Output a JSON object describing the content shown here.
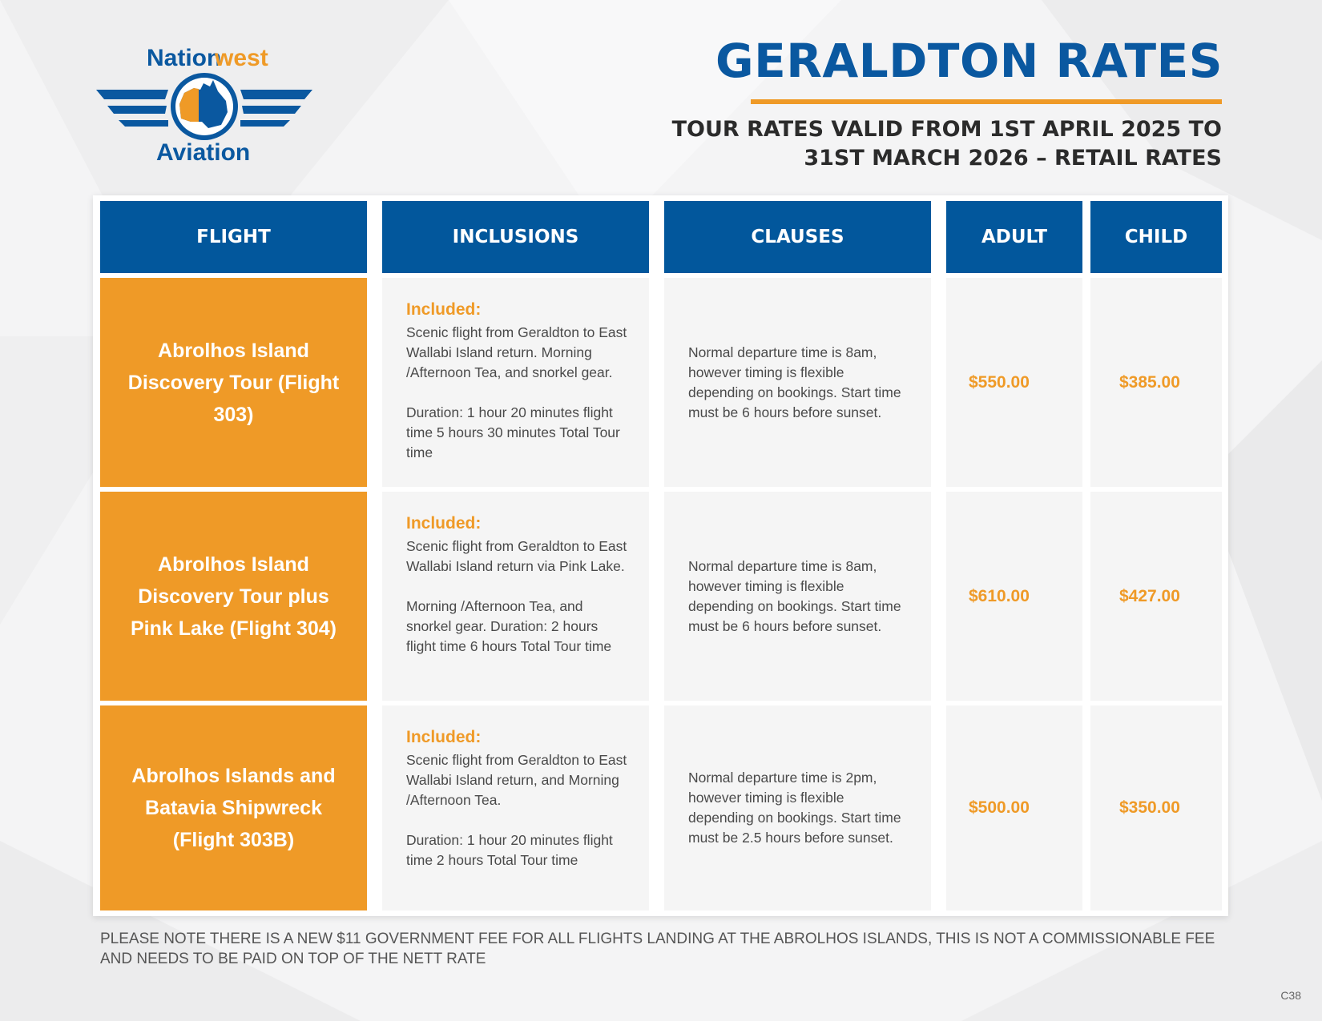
{
  "colors": {
    "brand_blue": "#02579c",
    "accent_orange": "#ef9a27",
    "title_blue": "#0a58a0"
  },
  "logo": {
    "brand_part1": "Nation",
    "brand_part2": "west",
    "brand_sub": "Aviation"
  },
  "header": {
    "title": "GERALDTON RATES",
    "subtitle_line1": "TOUR RATES VALID FROM 1ST APRIL 2025 TO",
    "subtitle_line2": "31ST MARCH 2026 – RETAIL RATES"
  },
  "table": {
    "columns": [
      "FLIGHT",
      "INCLUSIONS",
      "CLAUSES",
      "ADULT",
      "CHILD"
    ],
    "rows": [
      {
        "flight": "Abrolhos Island Discovery Tour (Flight 303)",
        "included_label": "Included:",
        "inclusions": [
          "Scenic flight from Geraldton to East Wallabi Island return. Morning /Afternoon Tea, and snorkel gear.",
          "Duration: 1 hour 20 minutes flight time 5 hours 30 minutes Total Tour time"
        ],
        "clauses": "Normal departure time is 8am, however timing is flexible depending on bookings. Start time must be 6 hours before sunset.",
        "adult": "$550.00",
        "child": "$385.00"
      },
      {
        "flight": "Abrolhos Island Discovery Tour plus Pink Lake (Flight 304)",
        "included_label": "Included:",
        "inclusions": [
          "Scenic flight from Geraldton to East Wallabi Island return via Pink Lake.",
          "Morning /Afternoon Tea, and snorkel gear. Duration: 2 hours flight time 6 hours Total Tour time"
        ],
        "clauses": "Normal departure time is 8am, however timing is flexible depending on bookings. Start time must be 6 hours before sunset.",
        "adult": "$610.00",
        "child": "$427.00"
      },
      {
        "flight": "Abrolhos Islands and Batavia Shipwreck (Flight 303B)",
        "included_label": "Included:",
        "inclusions": [
          "Scenic flight from Geraldton to East Wallabi Island return, and Morning /Afternoon Tea.",
          "Duration: 1 hour 20 minutes flight time 2 hours Total Tour time"
        ],
        "clauses": "Normal departure time is 2pm, however timing is flexible depending on bookings. Start time must be 2.5 hours before sunset.",
        "adult": "$500.00",
        "child": "$350.00"
      }
    ]
  },
  "footer": {
    "note": "PLEASE NOTE THERE IS A NEW $11 GOVERNMENT FEE FOR ALL FLIGHTS LANDING AT THE ABROLHOS ISLANDS, THIS IS NOT A COMMISSIONABLE FEE AND NEEDS TO BE PAID ON TOP OF THE NETT RATE",
    "page_code": "C38"
  }
}
